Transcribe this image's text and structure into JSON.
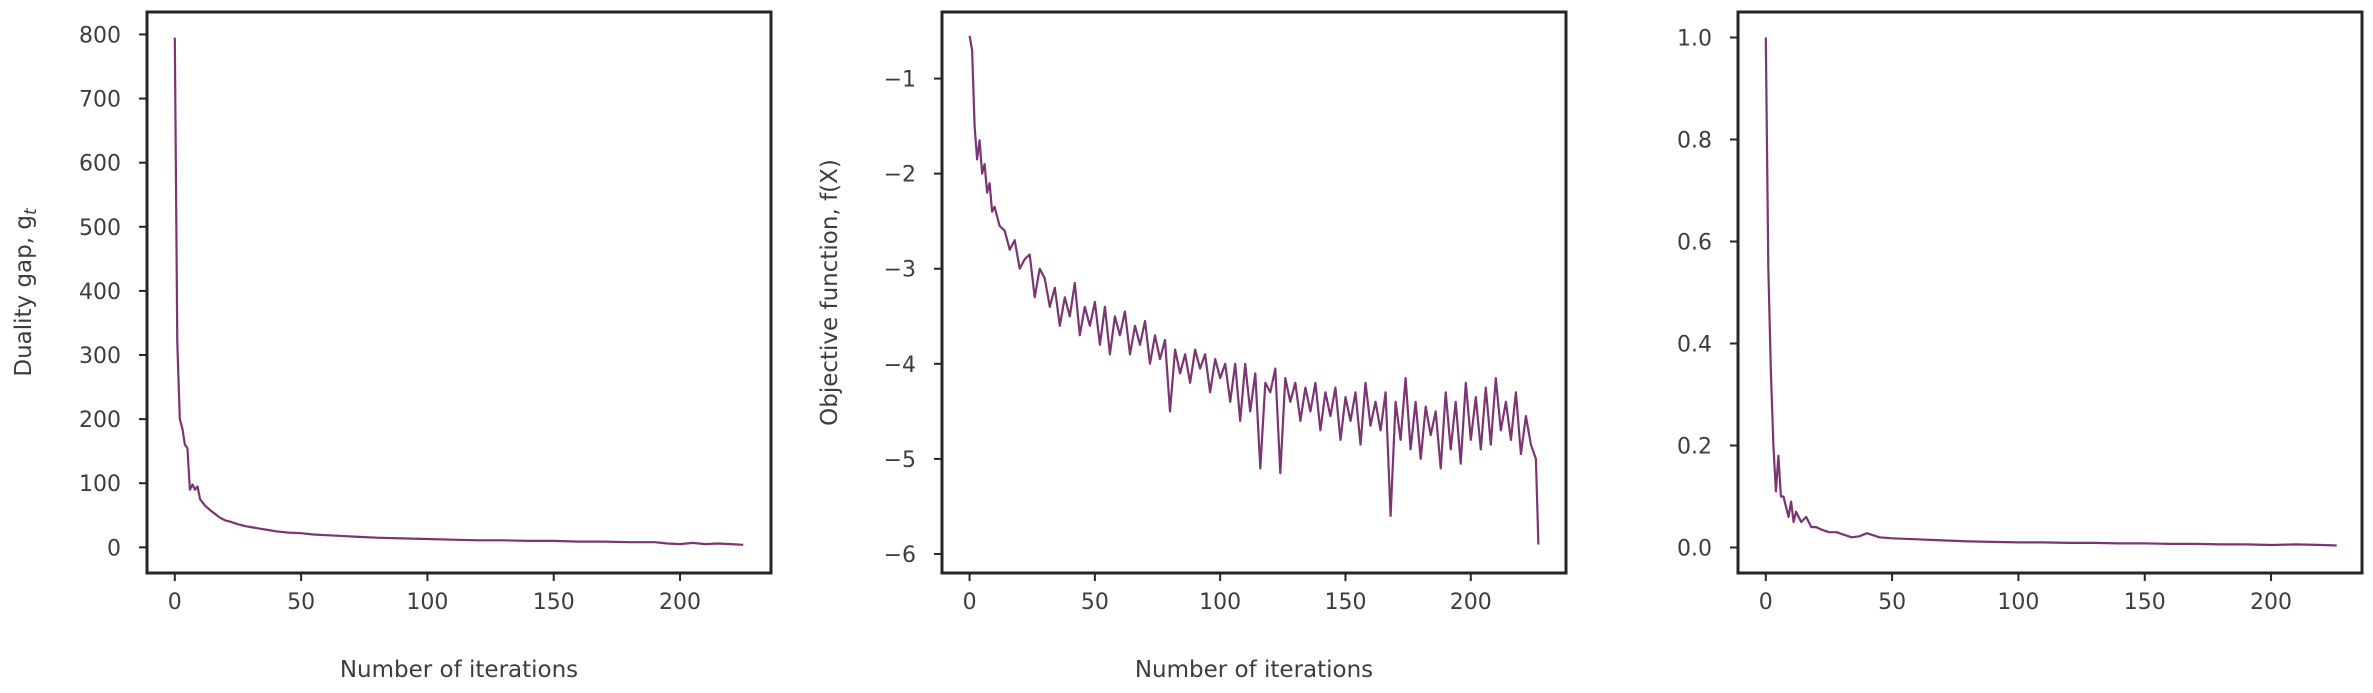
{
  "chart_data": [
    {
      "type": "line",
      "title": "",
      "xlabel": "Number of iterations",
      "ylabel": "Duality gap, g",
      "ylabel_subscript": "t",
      "xlim": [
        -11,
        236
      ],
      "ylim": [
        -40,
        835
      ],
      "xticks": [
        0,
        50,
        100,
        150,
        200
      ],
      "yticks": [
        0,
        100,
        200,
        300,
        400,
        500,
        600,
        700,
        800
      ],
      "tick_labels_x": [
        "0",
        "50",
        "100",
        "150",
        "200"
      ],
      "tick_labels_y": [
        "0",
        "100",
        "200",
        "300",
        "400",
        "500",
        "600",
        "700",
        "800"
      ],
      "grid": false,
      "color": "#7a3572",
      "series": [
        {
          "x": [
            0,
            1,
            2,
            3,
            4,
            5,
            6,
            7,
            8,
            9,
            10,
            12,
            14,
            16,
            18,
            20,
            22,
            25,
            28,
            31,
            34,
            37,
            40,
            45,
            50,
            55,
            60,
            65,
            70,
            75,
            80,
            90,
            100,
            110,
            120,
            130,
            140,
            150,
            160,
            170,
            180,
            190,
            195,
            200,
            205,
            210,
            215,
            220,
            225
          ],
          "y": [
            795,
            320,
            200,
            185,
            160,
            155,
            90,
            98,
            90,
            95,
            75,
            65,
            58,
            52,
            46,
            42,
            40,
            36,
            33,
            31,
            29,
            27,
            25,
            23,
            22,
            20,
            19,
            18,
            17,
            16,
            15,
            14,
            13,
            12,
            11,
            11,
            10,
            10,
            9,
            9,
            8,
            8,
            6,
            5,
            7,
            5,
            6,
            5,
            4
          ]
        }
      ]
    },
    {
      "type": "line",
      "title": "",
      "xlabel": "Number of iterations",
      "ylabel": "Objective function, f(X)",
      "xlim": [
        -11,
        238
      ],
      "ylim": [
        -6.2,
        -0.3
      ],
      "xticks": [
        0,
        50,
        100,
        150,
        200
      ],
      "yticks": [
        -1,
        -2,
        -3,
        -4,
        -5,
        -6
      ],
      "tick_labels_x": [
        "0",
        "50",
        "100",
        "150",
        "200"
      ],
      "tick_labels_y": [
        "−1",
        "−2",
        "−3",
        "−4",
        "−5",
        "−6"
      ],
      "grid": false,
      "color": "#7a3572",
      "series": [
        {
          "x": [
            0,
            1,
            2,
            3,
            4,
            5,
            6,
            7,
            8,
            9,
            10,
            12,
            14,
            16,
            18,
            20,
            22,
            24,
            26,
            28,
            30,
            32,
            34,
            36,
            38,
            40,
            42,
            44,
            46,
            48,
            50,
            52,
            54,
            56,
            58,
            60,
            62,
            64,
            66,
            68,
            70,
            72,
            74,
            76,
            78,
            80,
            82,
            84,
            86,
            88,
            90,
            92,
            94,
            96,
            98,
            100,
            102,
            104,
            106,
            108,
            110,
            112,
            114,
            116,
            118,
            120,
            122,
            124,
            126,
            128,
            130,
            132,
            134,
            136,
            138,
            140,
            142,
            144,
            146,
            148,
            150,
            152,
            154,
            156,
            158,
            160,
            162,
            164,
            166,
            168,
            170,
            172,
            174,
            176,
            178,
            180,
            182,
            184,
            186,
            188,
            190,
            192,
            194,
            196,
            198,
            200,
            202,
            204,
            206,
            208,
            210,
            212,
            214,
            216,
            218,
            220,
            222,
            224,
            226,
            227
          ],
          "y": [
            -0.55,
            -0.7,
            -1.5,
            -1.85,
            -1.65,
            -2.0,
            -1.9,
            -2.2,
            -2.1,
            -2.4,
            -2.35,
            -2.55,
            -2.6,
            -2.8,
            -2.7,
            -3.0,
            -2.9,
            -2.85,
            -3.3,
            -3.0,
            -3.1,
            -3.4,
            -3.2,
            -3.6,
            -3.3,
            -3.5,
            -3.15,
            -3.7,
            -3.4,
            -3.6,
            -3.35,
            -3.8,
            -3.4,
            -3.9,
            -3.5,
            -3.7,
            -3.45,
            -3.9,
            -3.6,
            -3.8,
            -3.55,
            -4.0,
            -3.7,
            -3.95,
            -3.75,
            -4.5,
            -3.85,
            -4.1,
            -3.9,
            -4.2,
            -3.85,
            -4.05,
            -3.9,
            -4.3,
            -3.95,
            -4.15,
            -4.0,
            -4.4,
            -4.0,
            -4.6,
            -4.0,
            -4.5,
            -4.1,
            -5.1,
            -4.2,
            -4.3,
            -4.05,
            -5.15,
            -4.15,
            -4.4,
            -4.2,
            -4.6,
            -4.25,
            -4.5,
            -4.2,
            -4.7,
            -4.3,
            -4.55,
            -4.25,
            -4.8,
            -4.35,
            -4.6,
            -4.3,
            -4.85,
            -4.2,
            -4.65,
            -4.4,
            -4.7,
            -4.3,
            -5.6,
            -4.4,
            -4.8,
            -4.15,
            -4.9,
            -4.4,
            -5.0,
            -4.45,
            -4.75,
            -4.5,
            -5.1,
            -4.3,
            -4.9,
            -4.4,
            -5.05,
            -4.2,
            -4.8,
            -4.35,
            -4.9,
            -4.25,
            -4.85,
            -4.15,
            -4.7,
            -4.4,
            -4.8,
            -4.3,
            -4.95,
            -4.55,
            -4.85,
            -5.0,
            -5.9
          ]
        }
      ]
    },
    {
      "type": "line",
      "title": "",
      "xlabel": "",
      "ylabel": "",
      "xlim": [
        -11,
        236
      ],
      "ylim": [
        -0.05,
        1.05
      ],
      "xticks": [
        0,
        50,
        100,
        150,
        200
      ],
      "yticks": [
        0.0,
        0.2,
        0.4,
        0.6,
        0.8,
        1.0
      ],
      "tick_labels_x": [
        "0",
        "50",
        "100",
        "150",
        "200"
      ],
      "tick_labels_y": [
        "0.0",
        "0.2",
        "0.4",
        "0.6",
        "0.8",
        "1.0"
      ],
      "grid": false,
      "color": "#7a3572",
      "series": [
        {
          "x": [
            0,
            1,
            2,
            3,
            4,
            5,
            6,
            7,
            8,
            9,
            10,
            11,
            12,
            14,
            16,
            18,
            20,
            22,
            25,
            28,
            31,
            34,
            37,
            40,
            45,
            50,
            55,
            60,
            65,
            70,
            75,
            80,
            90,
            100,
            110,
            120,
            130,
            140,
            150,
            160,
            170,
            180,
            190,
            200,
            210,
            220,
            226
          ],
          "y": [
            1.0,
            0.55,
            0.35,
            0.2,
            0.11,
            0.18,
            0.1,
            0.1,
            0.08,
            0.06,
            0.09,
            0.05,
            0.07,
            0.05,
            0.06,
            0.04,
            0.04,
            0.035,
            0.03,
            0.03,
            0.025,
            0.02,
            0.022,
            0.028,
            0.02,
            0.018,
            0.017,
            0.016,
            0.015,
            0.014,
            0.013,
            0.012,
            0.011,
            0.01,
            0.01,
            0.009,
            0.009,
            0.008,
            0.008,
            0.007,
            0.007,
            0.006,
            0.006,
            0.005,
            0.006,
            0.005,
            0.004
          ]
        }
      ]
    }
  ]
}
